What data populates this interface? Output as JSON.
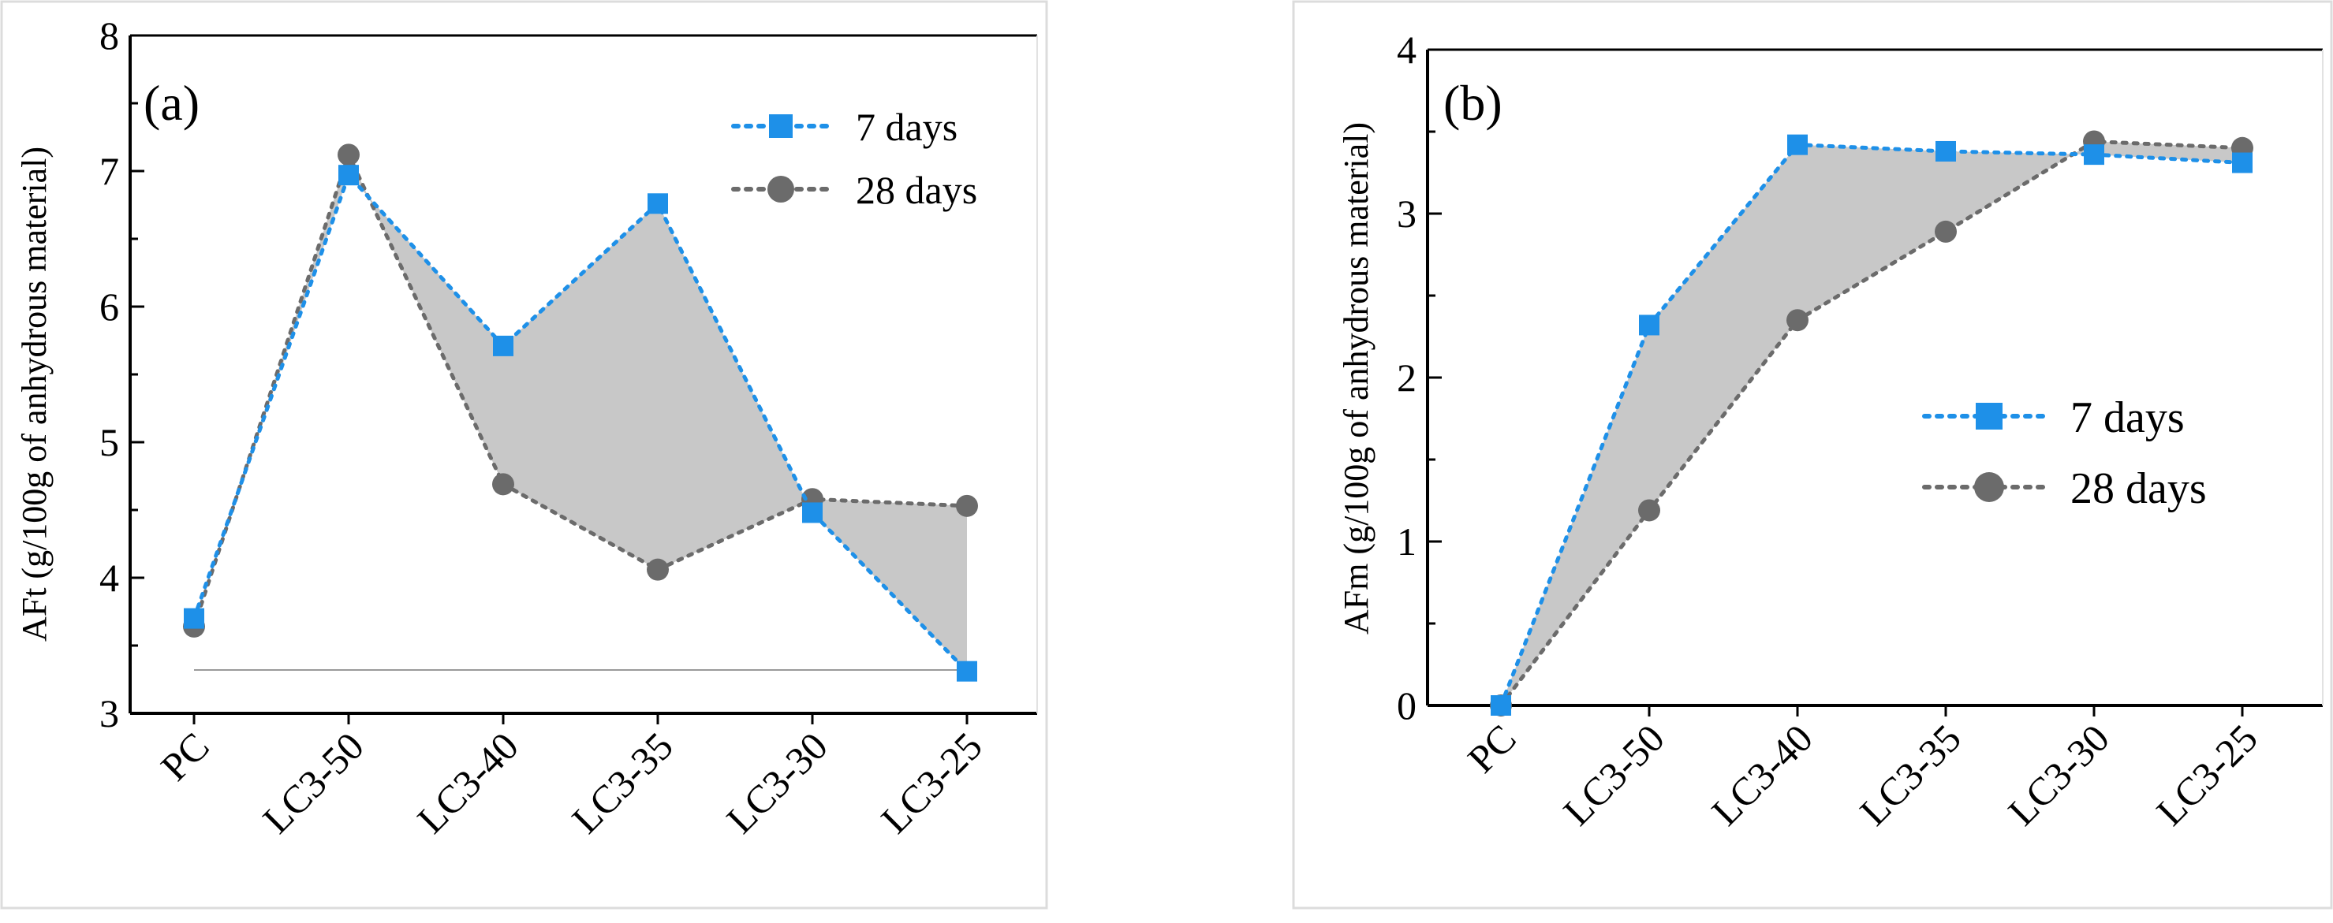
{
  "chart_data": [
    {
      "type": "line",
      "panel_label": "(a)",
      "title": "",
      "xlabel": "",
      "ylabel": "AFt (g/100g of anhydrous material)",
      "categories": [
        "PC",
        "LC3-50",
        "LC3-40",
        "LC3-35",
        "LC3-30",
        "LC3-25"
      ],
      "ylim": [
        3,
        8
      ],
      "yticks": [
        3,
        4,
        5,
        6,
        7,
        8
      ],
      "shaded_between_series": true,
      "reference_line_y": 3.32,
      "grid": false,
      "legend_position": "top-right",
      "series": [
        {
          "name": "7 days",
          "marker": "square",
          "color": "#1e90e8",
          "values": [
            3.7,
            6.97,
            5.71,
            6.76,
            4.48,
            3.31
          ]
        },
        {
          "name": "28 days",
          "marker": "circle",
          "color": "#6b6b6b",
          "values": [
            3.64,
            7.12,
            4.69,
            4.06,
            4.58,
            4.53
          ]
        }
      ]
    },
    {
      "type": "line",
      "panel_label": "(b)",
      "title": "",
      "xlabel": "",
      "ylabel": "AFm (g/100g of anhydrous material)",
      "categories": [
        "PC",
        "LC3-50",
        "LC3-40",
        "LC3-35",
        "LC3-30",
        "LC3-25"
      ],
      "ylim": [
        0,
        4
      ],
      "yticks": [
        0,
        1,
        2,
        3,
        4
      ],
      "shaded_between_series": true,
      "grid": false,
      "legend_position": "center-right",
      "series": [
        {
          "name": "7 days",
          "marker": "square",
          "color": "#1e90e8",
          "values": [
            0.0,
            2.32,
            3.42,
            3.38,
            3.36,
            3.31
          ]
        },
        {
          "name": "28 days",
          "marker": "circle",
          "color": "#6b6b6b",
          "values": [
            0.0,
            1.19,
            2.35,
            2.89,
            3.44,
            3.4
          ]
        }
      ]
    }
  ],
  "colors": {
    "fill": "#c8c8c8",
    "axis": "#000000",
    "frame": "#d9d9d9"
  }
}
